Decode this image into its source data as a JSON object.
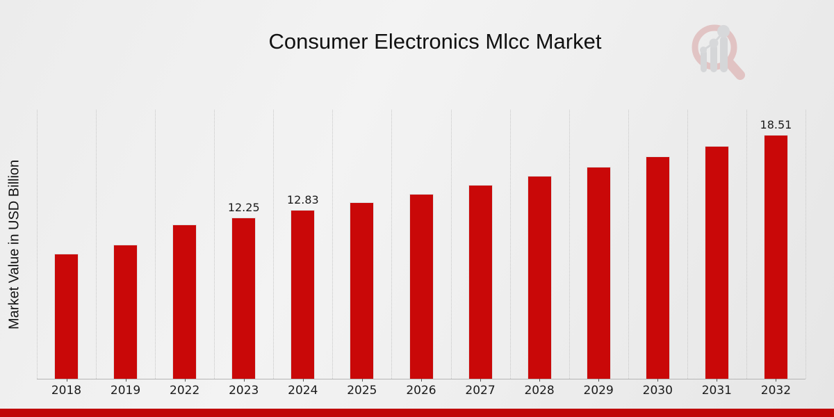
{
  "title": "Consumer Electronics Mlcc Market",
  "ylabel": "Market Value in USD Billion",
  "watermark_icon": "market-research-future-magnifier-chart-logo",
  "colors": {
    "bar": "#c90808",
    "footer_bar": "#c00505",
    "background": "#ededed",
    "gridline": "#c6c6c6",
    "text": "#1a1a1a"
  },
  "chart_data": {
    "type": "bar",
    "title": "Consumer Electronics Mlcc Market",
    "xlabel": "",
    "ylabel": "Market Value in USD Billion",
    "categories": [
      "2018",
      "2019",
      "2022",
      "2023",
      "2024",
      "2025",
      "2026",
      "2027",
      "2028",
      "2029",
      "2030",
      "2031",
      "2032"
    ],
    "values": [
      9.5,
      10.21,
      11.71,
      12.25,
      12.83,
      13.43,
      14.05,
      14.71,
      15.4,
      16.12,
      16.88,
      17.67,
      18.51
    ],
    "value_labels": [
      "",
      "",
      "",
      "12.25",
      "12.83",
      "",
      "",
      "",
      "",
      "",
      "",
      "",
      "18.51"
    ],
    "ylim": [
      0,
      20.43
    ],
    "grid": "vertical-dotted",
    "legend": "none",
    "bar_color": "#c90808",
    "unit": "USD Billion"
  }
}
